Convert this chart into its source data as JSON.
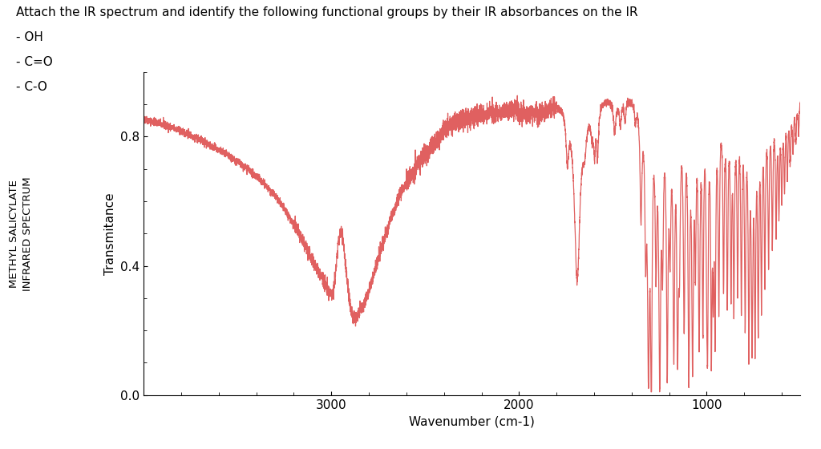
{
  "title": "Attach the IR spectrum and identify the following functional groups by their IR absorbances on the IR",
  "subtitle_lines": [
    "- OH",
    "- C=O",
    "- C-O"
  ],
  "ylabel_rotated": "METHYL SALICYLATE\nINFRARED SPECTRUM",
  "ylabel": "Transmitance",
  "xlabel": "Wavenumber (cm-1)",
  "xlim": [
    4000,
    500
  ],
  "ylim": [
    0.0,
    1.0
  ],
  "yticks": [
    0.0,
    0.4,
    0.8
  ],
  "xticks": [
    3000,
    2000,
    1000
  ],
  "line_color": "#e06060",
  "background_color": "#ffffff",
  "title_fontsize": 11,
  "label_fontsize": 11,
  "tick_fontsize": 11
}
